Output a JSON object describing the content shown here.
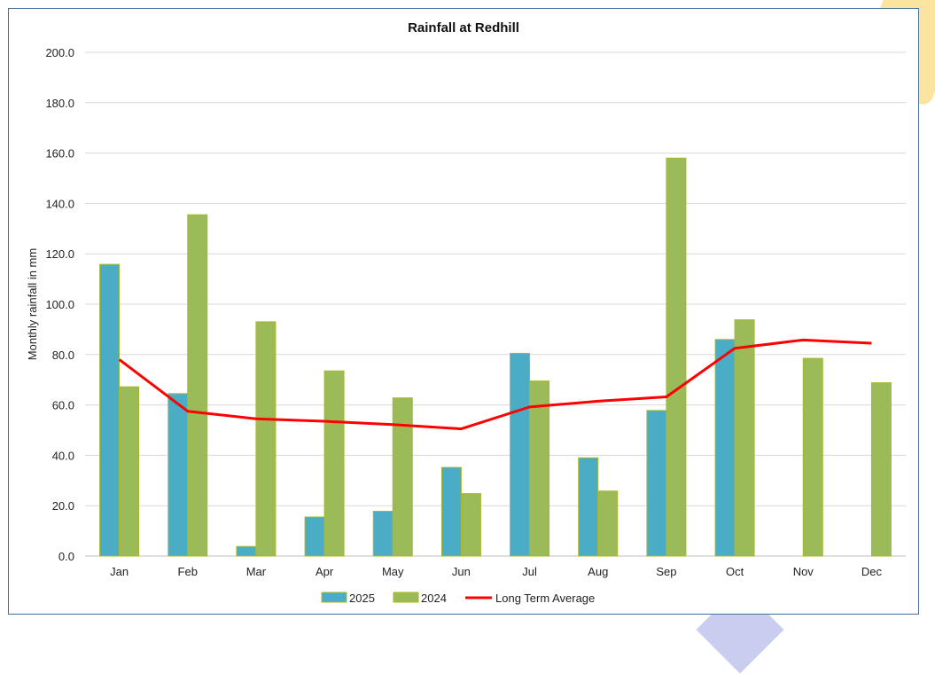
{
  "chart_data": {
    "type": "bar",
    "title": "Rainfall at Redhill",
    "xlabel": "",
    "ylabel": "Monthly rainfall in mm",
    "ylim": [
      0,
      200
    ],
    "yticks": [
      "0.0",
      "20.0",
      "40.0",
      "60.0",
      "80.0",
      "100.0",
      "120.0",
      "140.0",
      "160.0",
      "180.0",
      "200.0"
    ],
    "categories": [
      "Jan",
      "Feb",
      "Mar",
      "Apr",
      "May",
      "Jun",
      "Jul",
      "Aug",
      "Sep",
      "Oct",
      "Nov",
      "Dec"
    ],
    "series": [
      {
        "name": "2025",
        "kind": "bar",
        "color": "#4bacc6",
        "values": [
          115.8,
          64.5,
          3.8,
          15.5,
          17.8,
          35.2,
          80.5,
          39.0,
          57.8,
          86.0,
          null,
          null
        ]
      },
      {
        "name": "2024",
        "kind": "bar",
        "color": "#9bbb59",
        "values": [
          67.2,
          135.5,
          93.0,
          73.5,
          62.8,
          24.8,
          69.5,
          25.8,
          158.0,
          93.8,
          78.5,
          68.8
        ]
      },
      {
        "name": "Long Term Average",
        "kind": "line",
        "color": "#ff0000",
        "values": [
          78.0,
          57.5,
          54.5,
          53.5,
          52.2,
          50.5,
          59.2,
          61.5,
          63.2,
          82.5,
          85.8,
          84.5
        ]
      }
    ],
    "grid": true,
    "legend_position": "bottom"
  }
}
